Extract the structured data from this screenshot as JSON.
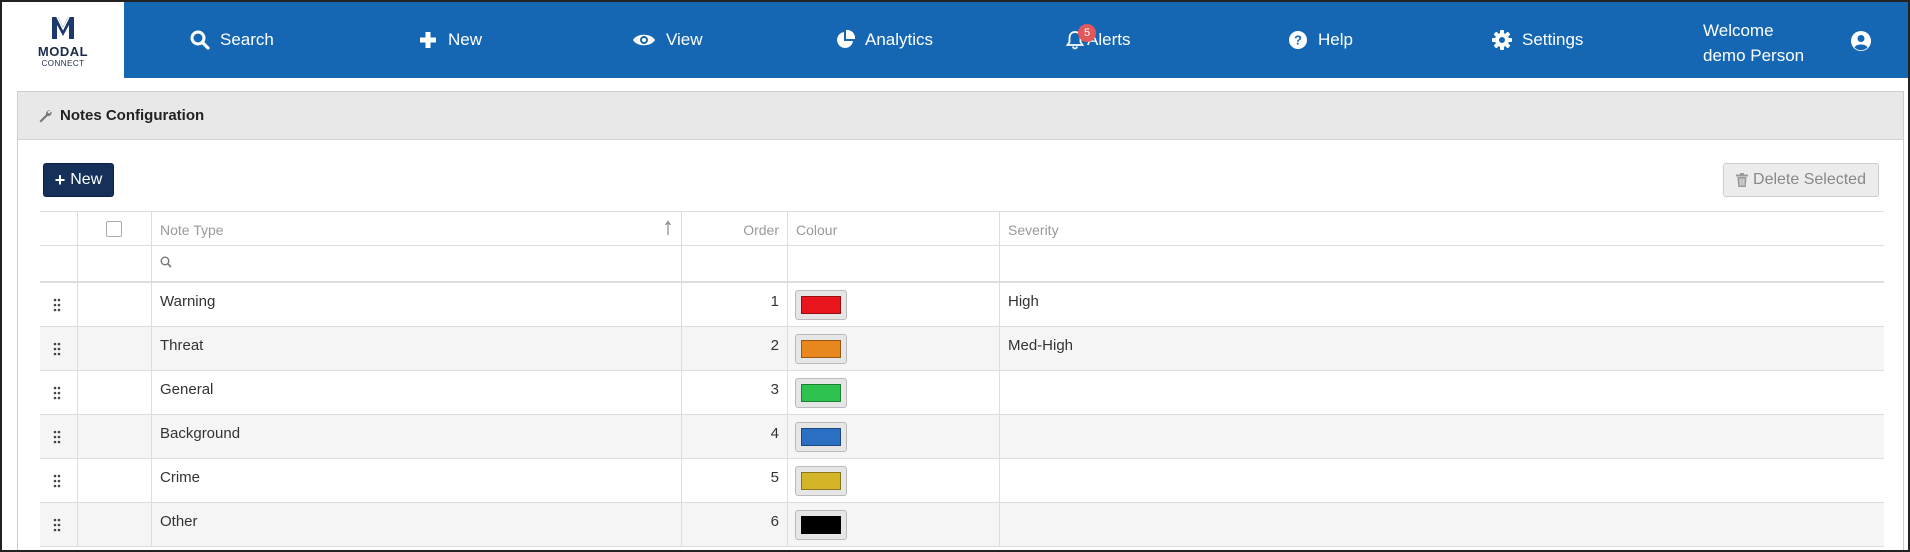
{
  "brand": {
    "name": "MODAL",
    "sub": "CONNECT"
  },
  "nav": {
    "search": "Search",
    "new": "New",
    "view": "View",
    "analytics": "Analytics",
    "alerts": "Alerts",
    "alerts_count": "5",
    "help": "Help",
    "settings": "Settings"
  },
  "user": {
    "welcome": "Welcome",
    "name": "demo Person"
  },
  "panel": {
    "title": "Notes Configuration"
  },
  "toolbar": {
    "new_label": "New",
    "delete_label": "Delete Selected"
  },
  "table": {
    "headers": {
      "note_type": "Note Type",
      "order": "Order",
      "colour": "Colour",
      "severity": "Severity"
    },
    "rows": [
      {
        "note_type": "Warning",
        "order": "1",
        "colour": "#e8161c",
        "severity": "High"
      },
      {
        "note_type": "Threat",
        "order": "2",
        "colour": "#e8871e",
        "severity": "Med-High"
      },
      {
        "note_type": "General",
        "order": "3",
        "colour": "#2ec24f",
        "severity": ""
      },
      {
        "note_type": "Background",
        "order": "4",
        "colour": "#2a6fc2",
        "severity": ""
      },
      {
        "note_type": "Crime",
        "order": "5",
        "colour": "#d4b52a",
        "severity": ""
      },
      {
        "note_type": "Other",
        "order": "6",
        "colour": "#000000",
        "severity": ""
      }
    ]
  }
}
